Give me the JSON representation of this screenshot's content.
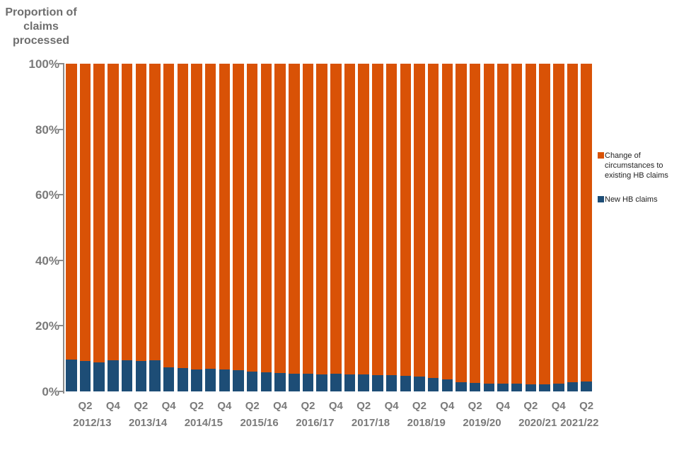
{
  "y_axis": {
    "title": "Proportion of\nclaims\nprocessed",
    "ticks": [
      {
        "label": "100%",
        "value": 100
      },
      {
        "label": "80%",
        "value": 80
      },
      {
        "label": "60%",
        "value": 60
      },
      {
        "label": "40%",
        "value": 40
      },
      {
        "label": "20%",
        "value": 20
      },
      {
        "label": "0%",
        "value": 0
      }
    ]
  },
  "x_axis": {
    "quarter_ticks": [
      {
        "label": "Q2",
        "bar": 1
      },
      {
        "label": "Q4",
        "bar": 3
      },
      {
        "label": "Q2",
        "bar": 5
      },
      {
        "label": "Q4",
        "bar": 7
      },
      {
        "label": "Q2",
        "bar": 9
      },
      {
        "label": "Q4",
        "bar": 11
      },
      {
        "label": "Q2",
        "bar": 13
      },
      {
        "label": "Q4",
        "bar": 15
      },
      {
        "label": "Q2",
        "bar": 17
      },
      {
        "label": "Q4",
        "bar": 19
      },
      {
        "label": "Q2",
        "bar": 21
      },
      {
        "label": "Q4",
        "bar": 23
      },
      {
        "label": "Q2",
        "bar": 25
      },
      {
        "label": "Q4",
        "bar": 27
      },
      {
        "label": "Q2",
        "bar": 29
      },
      {
        "label": "Q4",
        "bar": 31
      },
      {
        "label": "Q2",
        "bar": 33
      },
      {
        "label": "Q4",
        "bar": 35
      },
      {
        "label": "Q2",
        "bar": 37
      }
    ],
    "year_labels": [
      {
        "label": "2012/13",
        "start_bar": 0,
        "end_bar": 3
      },
      {
        "label": "2013/14",
        "start_bar": 4,
        "end_bar": 7
      },
      {
        "label": "2014/15",
        "start_bar": 8,
        "end_bar": 11
      },
      {
        "label": "2015/16",
        "start_bar": 12,
        "end_bar": 15
      },
      {
        "label": "2016/17",
        "start_bar": 16,
        "end_bar": 19
      },
      {
        "label": "2017/18",
        "start_bar": 20,
        "end_bar": 23
      },
      {
        "label": "2018/19",
        "start_bar": 24,
        "end_bar": 27
      },
      {
        "label": "2019/20",
        "start_bar": 28,
        "end_bar": 31
      },
      {
        "label": "2020/21",
        "start_bar": 32,
        "end_bar": 35
      },
      {
        "label": "2021/22",
        "start_bar": 36,
        "end_bar": 37
      }
    ]
  },
  "legend": {
    "items": [
      {
        "label": "Change of circumstances to existing HB claims",
        "color": "#D95206"
      },
      {
        "label": "New HB claims",
        "color": "#1D4D76"
      }
    ]
  },
  "colors": {
    "orange": "#D95206",
    "blue": "#1D4D76",
    "axis_text": "#7A7A7A",
    "axis_line": "#8C8C8C",
    "legend_text": "#1F1F1F"
  },
  "chart_data": {
    "type": "bar",
    "stacked": true,
    "title": "Proportion of claims processed",
    "ylabel": "Proportion of claims processed",
    "ylim": [
      0,
      100
    ],
    "grid": false,
    "legend_position": "right",
    "x": [
      "2012/13 Q1",
      "2012/13 Q2",
      "2012/13 Q3",
      "2012/13 Q4",
      "2013/14 Q1",
      "2013/14 Q2",
      "2013/14 Q3",
      "2013/14 Q4",
      "2014/15 Q1",
      "2014/15 Q2",
      "2014/15 Q3",
      "2014/15 Q4",
      "2015/16 Q1",
      "2015/16 Q2",
      "2015/16 Q3",
      "2015/16 Q4",
      "2016/17 Q1",
      "2016/17 Q2",
      "2016/17 Q3",
      "2016/17 Q4",
      "2017/18 Q1",
      "2017/18 Q2",
      "2017/18 Q3",
      "2017/18 Q4",
      "2018/19 Q1",
      "2018/19 Q2",
      "2018/19 Q3",
      "2018/19 Q4",
      "2019/20 Q1",
      "2019/20 Q2",
      "2019/20 Q3",
      "2019/20 Q4",
      "2020/21 Q1",
      "2020/21 Q2",
      "2020/21 Q3",
      "2020/21 Q4",
      "2021/22 Q1",
      "2021/22 Q2"
    ],
    "series": [
      {
        "name": "New HB claims",
        "color": "#1D4D76",
        "values": [
          9.8,
          9.2,
          8.8,
          9.5,
          9.6,
          9.3,
          9.4,
          7.3,
          7.1,
          6.8,
          6.9,
          6.6,
          6.4,
          6.1,
          5.9,
          5.7,
          5.5,
          5.4,
          5.2,
          5.3,
          5.2,
          5.1,
          5.0,
          4.9,
          4.8,
          4.6,
          4.2,
          3.6,
          2.9,
          2.6,
          2.4,
          2.3,
          2.3,
          2.2,
          2.2,
          2.3,
          2.9,
          3.1
        ]
      },
      {
        "name": "Change of circumstances to existing HB claims",
        "color": "#D95206",
        "values": [
          90.2,
          90.8,
          91.2,
          90.5,
          90.4,
          90.7,
          90.6,
          92.7,
          92.9,
          93.2,
          93.1,
          93.4,
          93.6,
          93.9,
          94.1,
          94.3,
          94.5,
          94.6,
          94.8,
          94.7,
          94.8,
          94.9,
          95.0,
          95.1,
          95.2,
          95.4,
          95.8,
          96.4,
          97.1,
          97.4,
          97.6,
          97.7,
          97.7,
          97.8,
          97.8,
          97.7,
          97.1,
          96.9
        ]
      }
    ]
  }
}
